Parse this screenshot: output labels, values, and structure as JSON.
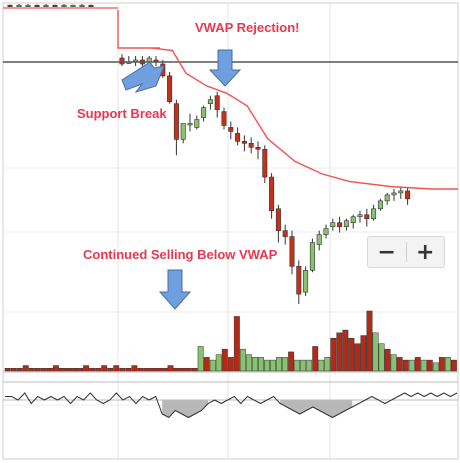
{
  "chart_data": {
    "type": "candlestick",
    "annotations": [
      {
        "id": "vwap-rejection",
        "text": "VWAP Rejection!"
      },
      {
        "id": "support-break",
        "text": "Support Break"
      },
      {
        "id": "continued-selling",
        "text": "Continued Selling Below VWAP"
      }
    ],
    "support_level": 109.3,
    "price_ylim": [
      97.0,
      111.7
    ],
    "vwap": [
      [
        0,
        109.3
      ],
      [
        10,
        109.3
      ],
      [
        16,
        109.2
      ],
      [
        20,
        108.3
      ],
      [
        26,
        107.8
      ],
      [
        32,
        107.5
      ],
      [
        38,
        107.0
      ],
      [
        44,
        105.7
      ],
      [
        52,
        104.8
      ],
      [
        60,
        104.3
      ],
      [
        68,
        104.0
      ],
      [
        80,
        103.8
      ],
      [
        92,
        103.7
      ],
      [
        100,
        103.7
      ]
    ],
    "candles": [
      [
        0,
        111.6,
        111.65,
        111.55,
        111.5
      ],
      [
        1,
        111.6,
        111.7,
        111.6,
        111.5
      ],
      [
        2,
        111.6,
        111.7,
        111.6,
        111.5
      ],
      [
        3,
        111.6,
        111.65,
        111.55,
        111.5
      ],
      [
        4,
        111.6,
        111.7,
        111.6,
        111.5
      ],
      [
        5,
        111.6,
        111.65,
        111.5,
        111.5
      ],
      [
        6,
        111.6,
        111.7,
        111.6,
        111.5
      ],
      [
        7,
        111.6,
        111.65,
        111.6,
        111.5
      ],
      [
        8,
        111.6,
        111.7,
        111.6,
        111.5
      ],
      [
        9,
        111.6,
        111.65,
        111.55,
        111.5
      ],
      [
        10,
        109.5,
        109.7,
        109.2,
        109.1
      ],
      [
        11,
        109.3,
        109.6,
        109.3,
        109.2
      ],
      [
        12,
        109.3,
        109.6,
        109.4,
        109.1
      ],
      [
        13,
        109.4,
        109.6,
        109.2,
        109.0
      ],
      [
        14,
        109.3,
        109.6,
        109.5,
        109.2
      ],
      [
        15,
        109.4,
        109.6,
        109.3,
        109.1
      ],
      [
        16,
        109.2,
        109.4,
        108.6,
        108.5
      ],
      [
        17,
        108.6,
        108.8,
        107.3,
        107.2
      ],
      [
        18,
        107.2,
        107.4,
        105.4,
        104.6
      ],
      [
        19,
        105.4,
        105.9,
        106.2,
        105.2
      ],
      [
        20,
        106.2,
        106.7,
        106.2,
        105.8
      ],
      [
        21,
        106.0,
        106.6,
        106.4,
        105.9
      ],
      [
        22,
        106.5,
        107.1,
        107.0,
        106.3
      ],
      [
        23,
        107.2,
        107.6,
        107.4,
        106.9
      ],
      [
        24,
        107.6,
        107.8,
        106.9,
        106.5
      ],
      [
        25,
        106.8,
        107.0,
        106.1,
        105.9
      ],
      [
        26,
        106.0,
        106.3,
        105.8,
        105.4
      ],
      [
        27,
        105.7,
        106.0,
        105.3,
        105.1
      ],
      [
        28,
        105.3,
        105.6,
        105.2,
        104.8
      ],
      [
        29,
        105.2,
        105.5,
        105.0,
        104.7
      ],
      [
        30,
        105.0,
        105.3,
        104.9,
        104.4
      ],
      [
        31,
        104.9,
        105.1,
        103.5,
        103.2
      ],
      [
        32,
        103.5,
        103.7,
        101.8,
        101.4
      ],
      [
        33,
        101.9,
        102.1,
        100.8,
        100.2
      ],
      [
        34,
        100.8,
        101.1,
        100.5,
        100.1
      ],
      [
        35,
        100.5,
        100.8,
        99.0,
        98.6
      ],
      [
        36,
        99.0,
        99.3,
        97.6,
        97.1
      ],
      [
        37,
        97.7,
        99.0,
        98.8,
        97.5
      ],
      [
        38,
        98.8,
        100.4,
        100.2,
        98.7
      ],
      [
        39,
        100.1,
        100.8,
        100.6,
        99.8
      ],
      [
        40,
        100.6,
        101.1,
        100.9,
        100.4
      ],
      [
        41,
        101.0,
        101.4,
        101.2,
        100.8
      ],
      [
        42,
        101.2,
        101.5,
        101.0,
        100.7
      ],
      [
        43,
        101.0,
        101.4,
        101.3,
        100.8
      ],
      [
        44,
        101.2,
        101.6,
        101.5,
        100.9
      ],
      [
        45,
        101.5,
        101.8,
        101.6,
        101.2
      ],
      [
        46,
        101.6,
        101.9,
        101.4,
        101.0
      ],
      [
        47,
        101.4,
        102.1,
        101.9,
        101.3
      ],
      [
        48,
        101.9,
        102.4,
        102.3,
        101.8
      ],
      [
        49,
        102.3,
        102.7,
        102.6,
        102.1
      ],
      [
        50,
        102.6,
        102.9,
        102.7,
        102.3
      ],
      [
        51,
        102.7,
        103.0,
        102.8,
        102.4
      ],
      [
        52,
        102.8,
        103.0,
        102.4,
        102.1
      ]
    ],
    "volume": [
      [
        0,
        1,
        "down"
      ],
      [
        1,
        1,
        "down"
      ],
      [
        2,
        1,
        "down"
      ],
      [
        3,
        2,
        "down"
      ],
      [
        4,
        1,
        "down"
      ],
      [
        5,
        1,
        "down"
      ],
      [
        6,
        1,
        "down"
      ],
      [
        7,
        1,
        "down"
      ],
      [
        8,
        2,
        "down"
      ],
      [
        9,
        1,
        "down"
      ],
      [
        10,
        1,
        "down"
      ],
      [
        11,
        1,
        "down"
      ],
      [
        12,
        1,
        "down"
      ],
      [
        13,
        2,
        "down"
      ],
      [
        14,
        1,
        "down"
      ],
      [
        15,
        1,
        "down"
      ],
      [
        16,
        2,
        "down"
      ],
      [
        17,
        1,
        "down"
      ],
      [
        18,
        2,
        "down"
      ],
      [
        19,
        1,
        "down"
      ],
      [
        20,
        1,
        "down"
      ],
      [
        21,
        2,
        "down"
      ],
      [
        22,
        1,
        "down"
      ],
      [
        23,
        1,
        "down"
      ],
      [
        24,
        1,
        "down"
      ],
      [
        25,
        1,
        "down"
      ],
      [
        26,
        1,
        "down"
      ],
      [
        27,
        2,
        "down"
      ],
      [
        28,
        1,
        "down"
      ],
      [
        29,
        1,
        "down"
      ],
      [
        30,
        1,
        "down"
      ],
      [
        31,
        1,
        "down"
      ],
      [
        32,
        9,
        "up"
      ],
      [
        33,
        5,
        "down"
      ],
      [
        34,
        4,
        "up"
      ],
      [
        35,
        6,
        "up"
      ],
      [
        36,
        8,
        "down"
      ],
      [
        37,
        5,
        "down"
      ],
      [
        38,
        20,
        "down"
      ],
      [
        39,
        8,
        "up"
      ],
      [
        40,
        6,
        "up"
      ],
      [
        41,
        5,
        "up"
      ],
      [
        42,
        5,
        "up"
      ],
      [
        43,
        4,
        "up"
      ],
      [
        44,
        4,
        "up"
      ],
      [
        45,
        5,
        "up"
      ],
      [
        46,
        5,
        "up"
      ],
      [
        47,
        7,
        "down"
      ],
      [
        48,
        4,
        "up"
      ],
      [
        49,
        4,
        "up"
      ],
      [
        50,
        4,
        "up"
      ],
      [
        51,
        9,
        "down"
      ],
      [
        52,
        4,
        "up"
      ],
      [
        53,
        5,
        "up"
      ],
      [
        54,
        12,
        "down"
      ],
      [
        55,
        14,
        "down"
      ],
      [
        56,
        15,
        "down"
      ],
      [
        57,
        12,
        "down"
      ],
      [
        58,
        10,
        "down"
      ],
      [
        59,
        13,
        "down"
      ],
      [
        60,
        22,
        "down"
      ],
      [
        61,
        14,
        "up"
      ],
      [
        62,
        10,
        "up"
      ],
      [
        63,
        8,
        "down"
      ],
      [
        64,
        6,
        "up"
      ],
      [
        65,
        5,
        "down"
      ],
      [
        66,
        4,
        "down"
      ],
      [
        67,
        4,
        "up"
      ],
      [
        68,
        5,
        "down"
      ],
      [
        69,
        4,
        "up"
      ],
      [
        70,
        4,
        "down"
      ],
      [
        71,
        3,
        "up"
      ],
      [
        72,
        5,
        "down"
      ],
      [
        73,
        5,
        "up"
      ],
      [
        74,
        4,
        "down"
      ]
    ],
    "oscillator_values": [
      0.55,
      0.55,
      0.5,
      0.6,
      0.45,
      0.55,
      0.5,
      0.55,
      0.5,
      0.55,
      0.45,
      0.55,
      0.5,
      0.6,
      0.5,
      0.45,
      0.5,
      0.6,
      0.5,
      0.55,
      0.45,
      0.55,
      0.5,
      0.55,
      0.3,
      0.25,
      0.35,
      0.3,
      0.25,
      0.3,
      0.35,
      0.45,
      0.5,
      0.45,
      0.5,
      0.55,
      0.45,
      0.55,
      0.5,
      0.45,
      0.5,
      0.55,
      0.45,
      0.4,
      0.35,
      0.3,
      0.35,
      0.4,
      0.35,
      0.3,
      0.25,
      0.3,
      0.35,
      0.4,
      0.45,
      0.5,
      0.55,
      0.5,
      0.45,
      0.5,
      0.55,
      0.6,
      0.55,
      0.6,
      0.55,
      0.6,
      0.55,
      0.6,
      0.55,
      0.6
    ],
    "colors": {
      "up": "#88c26f",
      "down": "#b42a17",
      "vwap": "#ef5350",
      "support": "#555555",
      "arrow": "#6f9fde",
      "annotation": "#e8384f"
    }
  },
  "zoom": {
    "minus_label": "−",
    "plus_label": "+"
  }
}
